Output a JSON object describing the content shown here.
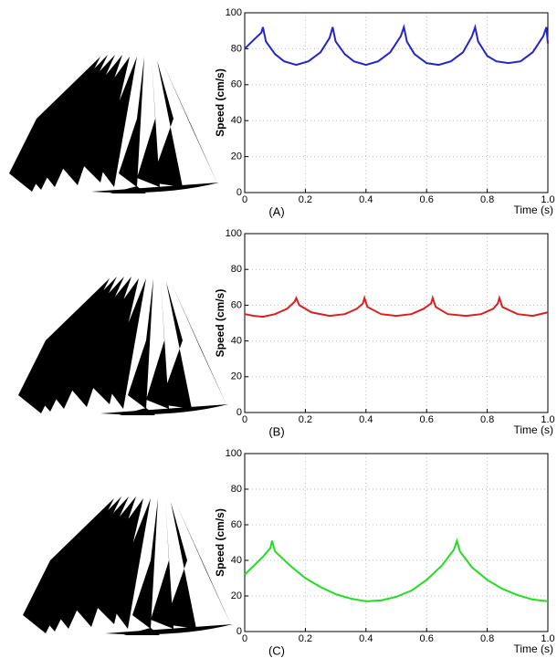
{
  "chart_data": [
    {
      "type": "line",
      "caption": "(A)",
      "xlabel": "Time (s)",
      "ylabel": "Speed (cm/s)",
      "color": "#2424c8",
      "x": [
        0,
        0.03,
        0.055,
        0.06,
        0.07,
        0.1,
        0.13,
        0.17,
        0.21,
        0.25,
        0.28,
        0.29,
        0.3,
        0.33,
        0.36,
        0.4,
        0.44,
        0.48,
        0.515,
        0.525,
        0.535,
        0.56,
        0.6,
        0.64,
        0.68,
        0.72,
        0.75,
        0.76,
        0.77,
        0.8,
        0.83,
        0.87,
        0.91,
        0.95,
        0.985,
        0.995,
        1.0
      ],
      "values": [
        80,
        85,
        89,
        92,
        84,
        77,
        73,
        71,
        73,
        78,
        86,
        92,
        84,
        77,
        73,
        71,
        73,
        78,
        87,
        92,
        84,
        77,
        72,
        71,
        73,
        78,
        87,
        92,
        84,
        76,
        73,
        72,
        73,
        78,
        87,
        92,
        83
      ],
      "xlim": [
        0,
        1
      ],
      "ylim": [
        0,
        100
      ],
      "xticks": [
        0,
        0.2,
        0.4,
        0.6,
        0.8,
        {
          "value": 1,
          "label": "1.0"
        }
      ],
      "yticks": [
        0,
        20,
        40,
        60,
        80,
        100
      ],
      "grid": true
    },
    {
      "type": "line",
      "caption": "(B)",
      "xlabel": "Time (s)",
      "ylabel": "Speed (cm/s)",
      "color": "#d82020",
      "x": [
        0,
        0.03,
        0.06,
        0.1,
        0.14,
        0.165,
        0.17,
        0.18,
        0.22,
        0.28,
        0.33,
        0.37,
        0.39,
        0.395,
        0.405,
        0.45,
        0.5,
        0.55,
        0.59,
        0.615,
        0.62,
        0.63,
        0.67,
        0.73,
        0.78,
        0.82,
        0.835,
        0.84,
        0.85,
        0.9,
        0.95,
        1.0
      ],
      "values": [
        55,
        54,
        53.5,
        55,
        58,
        62,
        64,
        60,
        56,
        54,
        55,
        58,
        61,
        64,
        59,
        55,
        54,
        55,
        58,
        61,
        64,
        59,
        55,
        54,
        55,
        58,
        61,
        64,
        59,
        55,
        54,
        56
      ],
      "xlim": [
        0,
        1
      ],
      "ylim": [
        0,
        100
      ],
      "xticks": [
        0,
        0.2,
        0.4,
        0.6,
        0.8,
        {
          "value": 1,
          "label": "1.0"
        }
      ],
      "yticks": [
        0,
        20,
        40,
        60,
        80,
        100
      ],
      "grid": true
    },
    {
      "type": "line",
      "caption": "(C)",
      "xlabel": "Time (s)",
      "ylabel": "Speed (cm/s)",
      "color": "#22dd22",
      "x": [
        0,
        0.03,
        0.06,
        0.085,
        0.09,
        0.1,
        0.15,
        0.2,
        0.25,
        0.3,
        0.35,
        0.4,
        0.45,
        0.5,
        0.55,
        0.6,
        0.65,
        0.69,
        0.7,
        0.71,
        0.75,
        0.8,
        0.85,
        0.9,
        0.95,
        1.0
      ],
      "values": [
        32,
        37,
        42,
        47,
        51,
        45,
        37,
        30,
        25,
        21,
        18.5,
        17,
        17.5,
        19.5,
        23,
        29,
        37,
        46,
        51,
        45,
        36,
        29,
        24,
        20.5,
        18,
        17
      ],
      "xlim": [
        0,
        1
      ],
      "ylim": [
        0,
        100
      ],
      "xticks": [
        0,
        0.2,
        0.4,
        0.6,
        0.8,
        {
          "value": 1,
          "label": "1.0"
        }
      ],
      "yticks": [
        0,
        20,
        40,
        60,
        80,
        100
      ],
      "grid": true
    }
  ]
}
